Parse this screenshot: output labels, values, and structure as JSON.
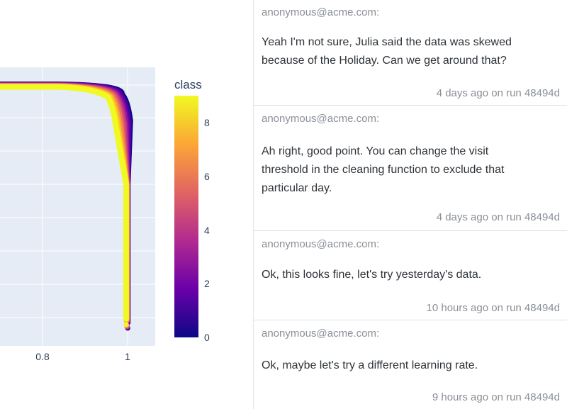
{
  "chart_data": {
    "type": "line",
    "x_ticks": [
      "0.8",
      "1"
    ],
    "legend": {
      "title": "class",
      "ticks": [
        "8",
        "6",
        "4",
        "2",
        "0"
      ],
      "colorscale": [
        "#0d0887",
        "#6a00a8",
        "#b12a90",
        "#e16462",
        "#fca636",
        "#f0f921"
      ],
      "range": [
        0,
        9
      ]
    },
    "series_colors": [
      "#0d0887",
      "#46039f",
      "#7201a8",
      "#9c179e",
      "#bd3786",
      "#d8576b",
      "#ed7953",
      "#fb9f3a",
      "#fdca26",
      "#f0f921"
    ]
  },
  "comments": [
    {
      "author": "anonymous@acme.com:",
      "lines": [
        "Yeah I'm not sure, Julia said the data was skewed",
        "because of the Holiday. Can we get around that?"
      ],
      "meta": "4 days ago on run 48494d"
    },
    {
      "author": "anonymous@acme.com:",
      "lines": [
        "Ah right, good point. You can change the visit",
        "threshold in the cleaning function to exclude that",
        "particular day."
      ],
      "meta": "4 days ago on run 48494d"
    },
    {
      "author": "anonymous@acme.com:",
      "lines": [
        "Ok, this looks fine, let's try yesterday's data."
      ],
      "meta": "10 hours ago on run 48494d"
    },
    {
      "author": "anonymous@acme.com:",
      "lines": [
        "Ok, maybe let's try a different learning rate."
      ],
      "meta": "9 hours ago on run 48494d"
    }
  ]
}
